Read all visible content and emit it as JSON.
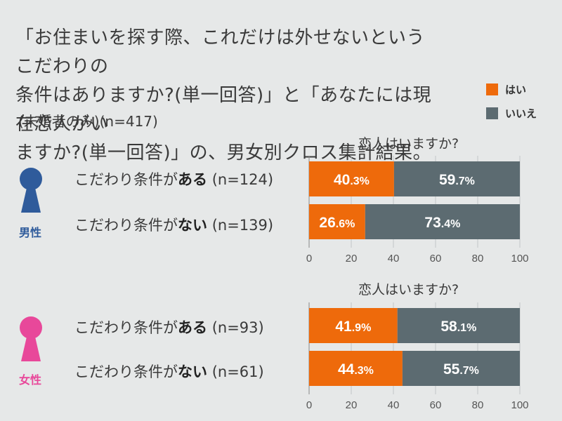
{
  "title": {
    "line1": "「お住まいを探す際、これだけは外せないというこだわりの",
    "line2": "条件はありますか?(単一回答)」と「あなたには現在恋人がい",
    "line3": "ますか?(単一回答)」の、男女別クロス集計結果。"
  },
  "subtitle": "(未婚者のみ)(n=417)",
  "legend": [
    {
      "label": "はい",
      "color": "#ee6a0b"
    },
    {
      "label": "いいえ",
      "color": "#5c6b71"
    }
  ],
  "groups": [
    {
      "gender": "男性",
      "icon": "male-keyhole-icon",
      "icon_color": "#2f5b9b",
      "block_title": "恋人はいますか?",
      "rows": [
        {
          "prefix": "こだわり条件が",
          "emph": "ある",
          "n": "(n=124)"
        },
        {
          "prefix": "こだわり条件が",
          "emph": "ない",
          "n": "(n=139)"
        }
      ]
    },
    {
      "gender": "女性",
      "icon": "female-keyhole-icon",
      "icon_color": "#e8489a",
      "block_title": "恋人はいますか?",
      "rows": [
        {
          "prefix": "こだわり条件が",
          "emph": "ある",
          "n": "(n=93)"
        },
        {
          "prefix": "こだわり条件が",
          "emph": "ない",
          "n": "(n=61)"
        }
      ]
    }
  ],
  "chart_data": [
    {
      "type": "bar",
      "orientation": "horizontal",
      "stacked": true,
      "title": "恋人はいますか?",
      "categories": [
        "こだわり条件がある (n=124)",
        "こだわり条件がない (n=139)"
      ],
      "series": [
        {
          "name": "はい",
          "values": [
            40.3,
            26.6
          ],
          "color": "#ee6a0b"
        },
        {
          "name": "いいえ",
          "values": [
            59.7,
            73.4
          ],
          "color": "#5c6b71"
        }
      ],
      "xlim": [
        0,
        100
      ],
      "xticks": [
        0,
        20,
        40,
        60,
        80,
        100
      ],
      "grid": true
    },
    {
      "type": "bar",
      "orientation": "horizontal",
      "stacked": true,
      "title": "恋人はいますか?",
      "categories": [
        "こだわり条件がある (n=93)",
        "こだわり条件がない (n=61)"
      ],
      "series": [
        {
          "name": "はい",
          "values": [
            41.9,
            44.3
          ],
          "color": "#ee6a0b"
        },
        {
          "name": "いいえ",
          "values": [
            58.1,
            55.7
          ],
          "color": "#5c6b71"
        }
      ],
      "xlim": [
        0,
        100
      ],
      "xticks": [
        0,
        20,
        40,
        60,
        80,
        100
      ],
      "grid": true
    }
  ]
}
